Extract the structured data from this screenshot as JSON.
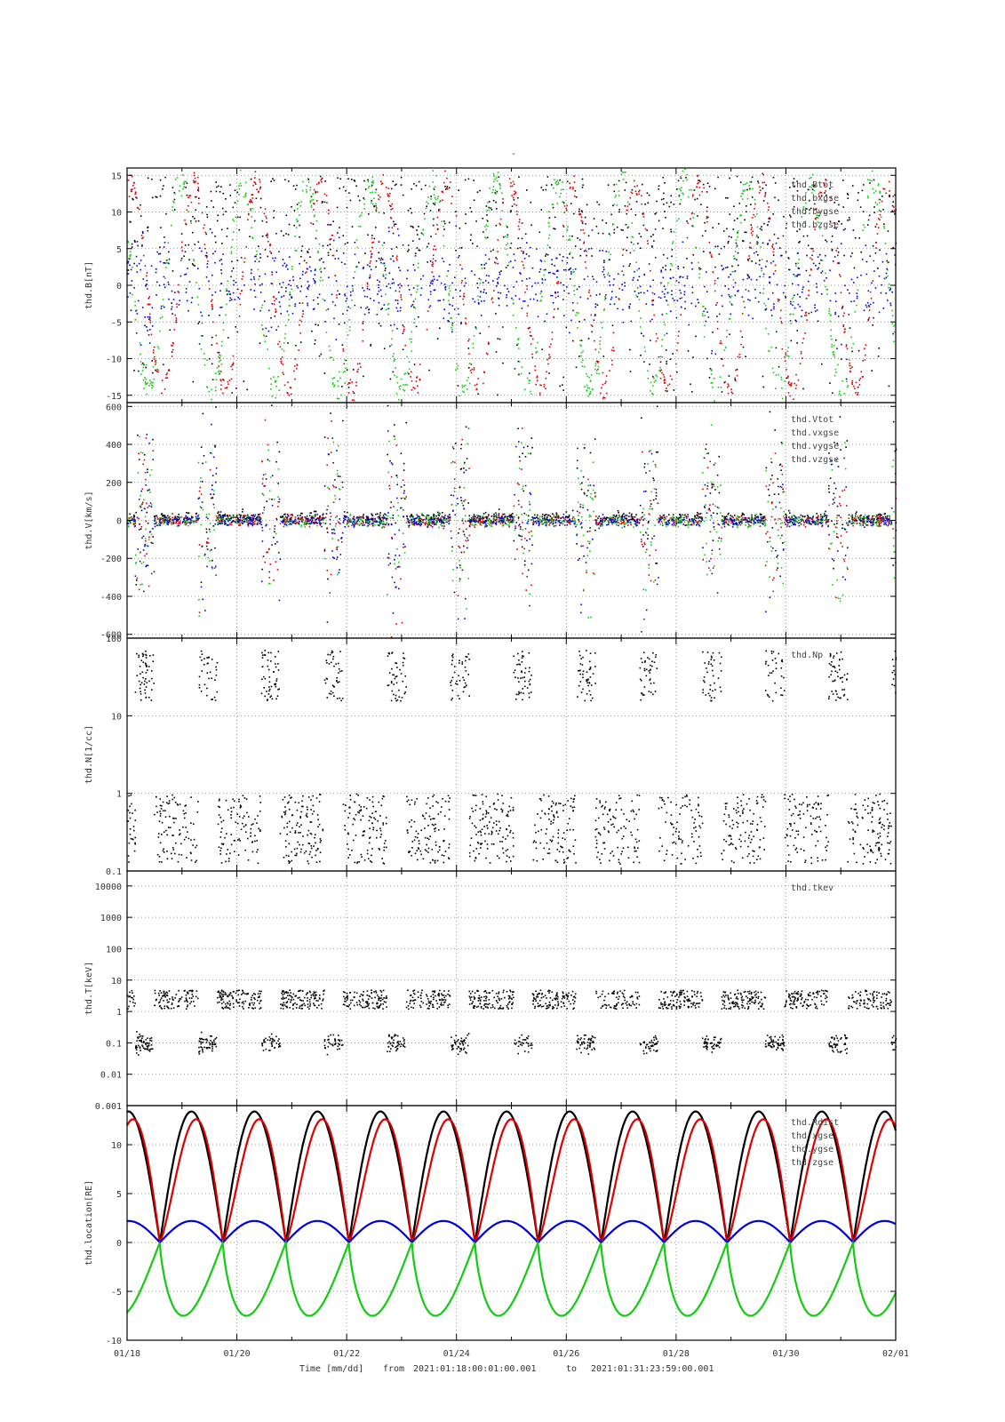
{
  "top_mark": "-",
  "footer": {
    "xlabel": "Time [mm/dd]",
    "from_label": "from",
    "start": "2021:01:18:00:01:00.001",
    "to_label": "to",
    "end": "2021:01:31:23:59:00.001"
  },
  "x_ticks": [
    "01/18",
    "01/20",
    "01/22",
    "01/24",
    "01/26",
    "01/28",
    "01/30",
    "02/01"
  ],
  "colors": {
    "black": "#000000",
    "red": "#dd0000",
    "green": "#11cc11",
    "blue": "#0000dd"
  },
  "chart_data": [
    {
      "type": "scatter",
      "ylabel": "thd.B[nT]",
      "ylim": [
        -16,
        16
      ],
      "yticks": [
        {
          "v": 15,
          "t": "15"
        },
        {
          "v": 10,
          "t": "10"
        },
        {
          "v": 5,
          "t": "5"
        },
        {
          "v": 0,
          "t": "0"
        },
        {
          "v": -5,
          "t": "-5"
        },
        {
          "v": -10,
          "t": "-10"
        },
        {
          "v": -15,
          "t": "-15"
        }
      ],
      "series": [
        {
          "name": "thd.Btot",
          "color": "#000000"
        },
        {
          "name": "thd.bxgse",
          "color": "#dd0000"
        },
        {
          "name": "thd.bygse",
          "color": "#11cc11"
        },
        {
          "name": "thd.bzgse",
          "color": "#0000dd"
        }
      ]
    },
    {
      "type": "scatter",
      "ylabel": "thd.V[km/s]",
      "ylim": [
        -620,
        620
      ],
      "yticks": [
        {
          "v": 600,
          "t": "600"
        },
        {
          "v": 400,
          "t": "400"
        },
        {
          "v": 200,
          "t": "200"
        },
        {
          "v": 0,
          "t": "0"
        },
        {
          "v": -200,
          "t": "-200"
        },
        {
          "v": -400,
          "t": "-400"
        },
        {
          "v": -600,
          "t": "-600"
        }
      ],
      "series": [
        {
          "name": "thd.Vtot",
          "color": "#000000"
        },
        {
          "name": "thd.vxgse",
          "color": "#dd0000"
        },
        {
          "name": "thd.vygse",
          "color": "#11cc11"
        },
        {
          "name": "thd.vzgse",
          "color": "#0000dd"
        }
      ]
    },
    {
      "type": "scatter",
      "ylabel": "thd.N[1/cc]",
      "log": true,
      "ylim": [
        0.1,
        100
      ],
      "yticks": [
        {
          "v": 100,
          "t": "100"
        },
        {
          "v": 10,
          "t": "10"
        },
        {
          "v": 1,
          "t": "1"
        },
        {
          "v": 0.1,
          "t": "0.1"
        }
      ],
      "series": [
        {
          "name": "thd.Np",
          "color": "#000000"
        }
      ]
    },
    {
      "type": "scatter",
      "ylabel": "thd.T[keV]",
      "log": true,
      "ylim": [
        0.001,
        30000
      ],
      "yticks": [
        {
          "v": 10000,
          "t": "10000"
        },
        {
          "v": 1000,
          "t": "1000"
        },
        {
          "v": 100,
          "t": "100"
        },
        {
          "v": 10,
          "t": "10"
        },
        {
          "v": 1,
          "t": "1"
        },
        {
          "v": 0.1,
          "t": "0.1"
        },
        {
          "v": 0.01,
          "t": "0.01"
        },
        {
          "v": 0.001,
          "t": "0.001"
        }
      ],
      "series": [
        {
          "name": "thd.tkev",
          "color": "#000000"
        }
      ]
    },
    {
      "type": "line",
      "ylabel": "thd.location[RE]",
      "ylim": [
        -10,
        14
      ],
      "yticks": [
        {
          "v": 10,
          "t": "10"
        },
        {
          "v": 5,
          "t": "5"
        },
        {
          "v": 0,
          "t": "0"
        },
        {
          "v": -5,
          "t": "-5"
        },
        {
          "v": -10,
          "t": "-10"
        }
      ],
      "orbit_period_days": 1.148,
      "series": [
        {
          "name": "thd.Rdist",
          "color": "#000000",
          "max": 13.4
        },
        {
          "name": "thd.xgse",
          "color": "#dd0000",
          "max": 12.6
        },
        {
          "name": "thd.ygse",
          "color": "#0000dd",
          "max": 2.2
        },
        {
          "name": "thd.zgse",
          "color": "#11cc11",
          "min": -7.5
        }
      ]
    }
  ]
}
